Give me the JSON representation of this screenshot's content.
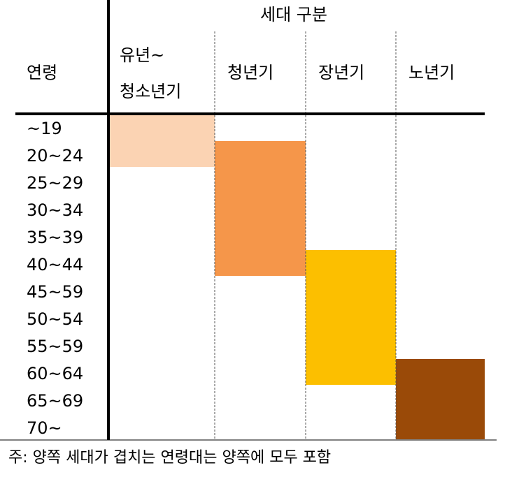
{
  "header": {
    "group_title": "세대 구분",
    "age_title": "연령"
  },
  "ages": [
    "~19",
    "20~24",
    "25~29",
    "30~34",
    "35~39",
    "40~44",
    "45~59",
    "50~54",
    "55~59",
    "60~64",
    "65~69",
    "70~"
  ],
  "generations": [
    {
      "label": [
        "유년~",
        "청소년기"
      ],
      "color": "#fbd3b3",
      "rows": [
        0,
        1
      ]
    },
    {
      "label": [
        "청년기"
      ],
      "color": "#f5964a",
      "rows": [
        1,
        5
      ]
    },
    {
      "label": [
        "장년기"
      ],
      "color": "#fcbf00",
      "rows": [
        5,
        9
      ]
    },
    {
      "label": [
        "노년기"
      ],
      "color": "#9a4a08",
      "rows": [
        9,
        11
      ]
    }
  ],
  "note": "주: 양쪽 세대가 겹치는 연령대는 양쪽에 모두 포함"
}
